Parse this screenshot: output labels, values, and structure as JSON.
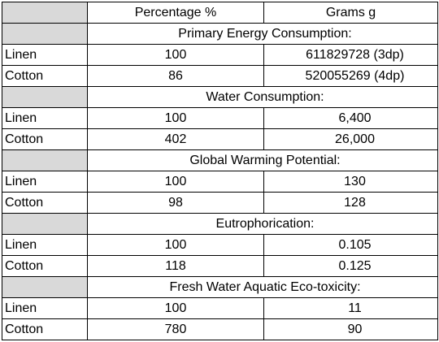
{
  "header": {
    "col_percentage": "Percentage %",
    "col_grams": "Grams g"
  },
  "sections": [
    {
      "title": "Primary Energy Consumption:",
      "rows": [
        {
          "material": "Linen",
          "percentage": "100",
          "grams": "611829728 (3dp)"
        },
        {
          "material": "Cotton",
          "percentage": "86",
          "grams": "520055269 (4dp)"
        }
      ]
    },
    {
      "title": "Water Consumption:",
      "rows": [
        {
          "material": "Linen",
          "percentage": "100",
          "grams": "6,400"
        },
        {
          "material": "Cotton",
          "percentage": "402",
          "grams": "26,000"
        }
      ]
    },
    {
      "title": "Global Warming Potential:",
      "rows": [
        {
          "material": "Linen",
          "percentage": "100",
          "grams": "130"
        },
        {
          "material": "Cotton",
          "percentage": "98",
          "grams": "128"
        }
      ]
    },
    {
      "title": "Eutrophorication:",
      "rows": [
        {
          "material": "Linen",
          "percentage": "100",
          "grams": "0.105"
        },
        {
          "material": "Cotton",
          "percentage": "118",
          "grams": "0.125"
        }
      ]
    },
    {
      "title": "Fresh Water Aquatic Eco-toxicity:",
      "rows": [
        {
          "material": "Linen",
          "percentage": "100",
          "grams": "11"
        },
        {
          "material": "Cotton",
          "percentage": "780",
          "grams": "90"
        }
      ]
    }
  ],
  "colors": {
    "header_cell_grey": "#d9d9d9",
    "border": "#000000"
  }
}
